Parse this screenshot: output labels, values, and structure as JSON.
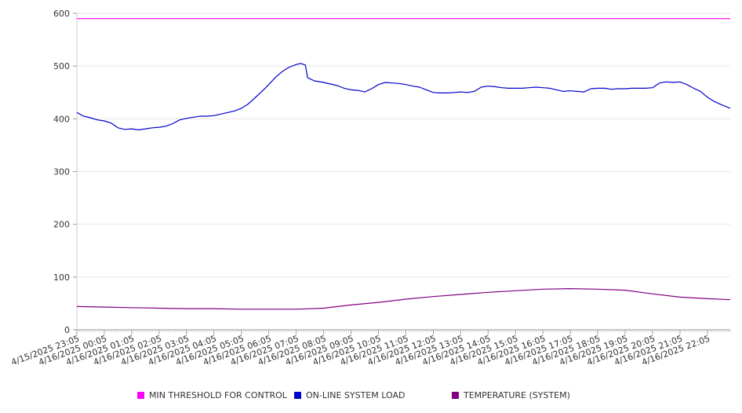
{
  "chart_data": {
    "type": "line",
    "title": "",
    "xlabel": "",
    "ylabel": "",
    "ylim": [
      0,
      600
    ],
    "yticks": [
      0,
      100,
      200,
      300,
      400,
      500,
      600
    ],
    "xlim": [
      "4/15/2025 23:05",
      "4/16/2025 22:55"
    ],
    "grid": true,
    "legend_position": "bottom",
    "x_tick_labels": [
      "4/15/2025 23:05",
      "4/16/2025 00:05",
      "4/16/2025 01:05",
      "4/16/2025 02:05",
      "4/16/2025 03:05",
      "4/16/2025 04:05",
      "4/16/2025 05:05",
      "4/16/2025 06:05",
      "4/16/2025 07:05",
      "4/16/2025 08:05",
      "4/16/2025 09:05",
      "4/16/2025 10:05",
      "4/16/2025 11:05",
      "4/16/2025 12:05",
      "4/16/2025 13:05",
      "4/16/2025 14:05",
      "4/16/2025 15:05",
      "4/16/2025 16:05",
      "4/16/2025 17:05",
      "4/16/2025 18:05",
      "4/16/2025 19:05",
      "4/16/2025 20:05",
      "4/16/2025 21:05",
      "4/16/2025 22:05"
    ],
    "series": [
      {
        "name": "MIN THRESHOLD FOR CONTROL",
        "color": "#ff00ff",
        "points": [
          [
            "4/15/2025 23:05",
            590
          ],
          [
            "4/16/2025 22:55",
            590
          ]
        ]
      },
      {
        "name": "ON-LINE SYSTEM LOAD",
        "color": "#0000cc",
        "points": [
          [
            "4/15/2025 23:05",
            412
          ],
          [
            "4/15/2025 23:20",
            405
          ],
          [
            "4/15/2025 23:35",
            402
          ],
          [
            "4/15/2025 23:50",
            398
          ],
          [
            "4/16/2025 00:05",
            396
          ],
          [
            "4/16/2025 00:20",
            392
          ],
          [
            "4/16/2025 00:35",
            383
          ],
          [
            "4/16/2025 00:50",
            380
          ],
          [
            "4/16/2025 01:05",
            381
          ],
          [
            "4/16/2025 01:20",
            379
          ],
          [
            "4/16/2025 01:35",
            381
          ],
          [
            "4/16/2025 01:50",
            383
          ],
          [
            "4/16/2025 02:05",
            384
          ],
          [
            "4/16/2025 02:20",
            386
          ],
          [
            "4/16/2025 02:35",
            391
          ],
          [
            "4/16/2025 02:50",
            398
          ],
          [
            "4/16/2025 03:05",
            401
          ],
          [
            "4/16/2025 03:20",
            403
          ],
          [
            "4/16/2025 03:35",
            405
          ],
          [
            "4/16/2025 03:50",
            405
          ],
          [
            "4/16/2025 04:05",
            406
          ],
          [
            "4/16/2025 04:20",
            409
          ],
          [
            "4/16/2025 04:35",
            412
          ],
          [
            "4/16/2025 04:50",
            415
          ],
          [
            "4/16/2025 05:05",
            420
          ],
          [
            "4/16/2025 05:20",
            428
          ],
          [
            "4/16/2025 05:35",
            440
          ],
          [
            "4/16/2025 05:50",
            452
          ],
          [
            "4/16/2025 06:05",
            465
          ],
          [
            "4/16/2025 06:20",
            479
          ],
          [
            "4/16/2025 06:35",
            490
          ],
          [
            "4/16/2025 06:50",
            498
          ],
          [
            "4/16/2025 07:05",
            503
          ],
          [
            "4/16/2025 07:15",
            505
          ],
          [
            "4/16/2025 07:25",
            502
          ],
          [
            "4/16/2025 07:30",
            478
          ],
          [
            "4/16/2025 07:45",
            472
          ],
          [
            "4/16/2025 08:05",
            469
          ],
          [
            "4/16/2025 08:20",
            466
          ],
          [
            "4/16/2025 08:35",
            463
          ],
          [
            "4/16/2025 08:50",
            458
          ],
          [
            "4/16/2025 09:05",
            455
          ],
          [
            "4/16/2025 09:20",
            454
          ],
          [
            "4/16/2025 09:35",
            451
          ],
          [
            "4/16/2025 09:50",
            457
          ],
          [
            "4/16/2025 10:05",
            465
          ],
          [
            "4/16/2025 10:20",
            469
          ],
          [
            "4/16/2025 10:35",
            468
          ],
          [
            "4/16/2025 10:50",
            467
          ],
          [
            "4/16/2025 11:05",
            465
          ],
          [
            "4/16/2025 11:20",
            462
          ],
          [
            "4/16/2025 11:35",
            460
          ],
          [
            "4/16/2025 11:50",
            455
          ],
          [
            "4/16/2025 12:05",
            450
          ],
          [
            "4/16/2025 12:20",
            449
          ],
          [
            "4/16/2025 12:35",
            449
          ],
          [
            "4/16/2025 12:50",
            450
          ],
          [
            "4/16/2025 13:05",
            451
          ],
          [
            "4/16/2025 13:20",
            450
          ],
          [
            "4/16/2025 13:35",
            452
          ],
          [
            "4/16/2025 13:50",
            460
          ],
          [
            "4/16/2025 14:05",
            462
          ],
          [
            "4/16/2025 14:20",
            461
          ],
          [
            "4/16/2025 14:35",
            459
          ],
          [
            "4/16/2025 14:50",
            458
          ],
          [
            "4/16/2025 15:05",
            458
          ],
          [
            "4/16/2025 15:20",
            458
          ],
          [
            "4/16/2025 15:35",
            459
          ],
          [
            "4/16/2025 15:50",
            460
          ],
          [
            "4/16/2025 16:05",
            459
          ],
          [
            "4/16/2025 16:20",
            458
          ],
          [
            "4/16/2025 16:35",
            455
          ],
          [
            "4/16/2025 16:50",
            452
          ],
          [
            "4/16/2025 17:05",
            453
          ],
          [
            "4/16/2025 17:20",
            452
          ],
          [
            "4/16/2025 17:35",
            451
          ],
          [
            "4/16/2025 17:50",
            457
          ],
          [
            "4/16/2025 18:05",
            458
          ],
          [
            "4/16/2025 18:20",
            458
          ],
          [
            "4/16/2025 18:35",
            456
          ],
          [
            "4/16/2025 18:50",
            457
          ],
          [
            "4/16/2025 19:05",
            457
          ],
          [
            "4/16/2025 19:20",
            458
          ],
          [
            "4/16/2025 19:35",
            458
          ],
          [
            "4/16/2025 19:50",
            458
          ],
          [
            "4/16/2025 20:05",
            459
          ],
          [
            "4/16/2025 20:20",
            468
          ],
          [
            "4/16/2025 20:35",
            470
          ],
          [
            "4/16/2025 20:50",
            469
          ],
          [
            "4/16/2025 21:05",
            470
          ],
          [
            "4/16/2025 21:20",
            465
          ],
          [
            "4/16/2025 21:35",
            458
          ],
          [
            "4/16/2025 21:50",
            452
          ],
          [
            "4/16/2025 22:05",
            441
          ],
          [
            "4/16/2025 22:20",
            433
          ],
          [
            "4/16/2025 22:35",
            427
          ],
          [
            "4/16/2025 22:55",
            420
          ]
        ]
      },
      {
        "name": "TEMPERATURE (SYSTEM)",
        "color": "#800080",
        "points": [
          [
            "4/15/2025 23:05",
            44
          ],
          [
            "4/16/2025 00:05",
            43
          ],
          [
            "4/16/2025 01:05",
            42
          ],
          [
            "4/16/2025 02:05",
            41
          ],
          [
            "4/16/2025 03:05",
            40
          ],
          [
            "4/16/2025 04:05",
            40
          ],
          [
            "4/16/2025 05:05",
            39
          ],
          [
            "4/16/2025 06:05",
            39
          ],
          [
            "4/16/2025 07:05",
            39
          ],
          [
            "4/16/2025 08:05",
            41
          ],
          [
            "4/16/2025 09:05",
            47
          ],
          [
            "4/16/2025 10:05",
            52
          ],
          [
            "4/16/2025 11:05",
            58
          ],
          [
            "4/16/2025 12:05",
            63
          ],
          [
            "4/16/2025 13:05",
            67
          ],
          [
            "4/16/2025 14:05",
            71
          ],
          [
            "4/16/2025 15:05",
            74
          ],
          [
            "4/16/2025 16:05",
            77
          ],
          [
            "4/16/2025 17:05",
            78
          ],
          [
            "4/16/2025 18:05",
            77
          ],
          [
            "4/16/2025 19:05",
            75
          ],
          [
            "4/16/2025 20:05",
            68
          ],
          [
            "4/16/2025 21:05",
            62
          ],
          [
            "4/16/2025 22:05",
            59
          ],
          [
            "4/16/2025 22:55",
            57
          ]
        ]
      }
    ]
  }
}
